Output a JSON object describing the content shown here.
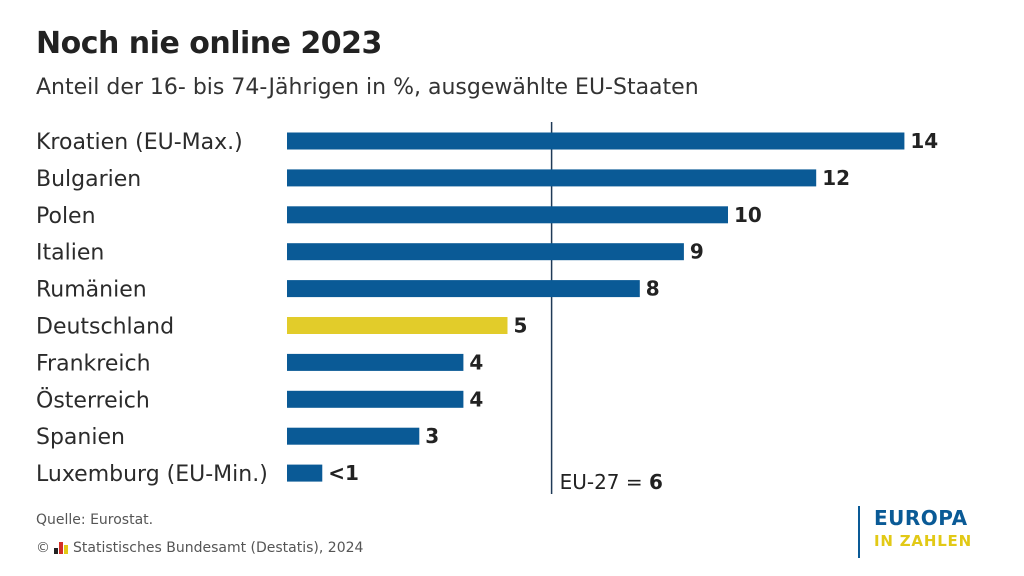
{
  "header": {
    "title": "Noch nie online 2023",
    "subtitle": "Anteil der 16- bis 74-Jährigen in %, ausgewählte EU-Staaten"
  },
  "chart_data": {
    "type": "bar",
    "orientation": "horizontal",
    "categories": [
      "Kroatien (EU-Max.)",
      "Bulgarien",
      "Polen",
      "Italien",
      "Rumänien",
      "Deutschland",
      "Frankreich",
      "Österreich",
      "Spanien",
      "Luxemburg (EU-Min.)"
    ],
    "values": [
      14,
      12,
      10,
      9,
      8,
      5,
      4,
      4,
      3,
      0.8
    ],
    "value_labels": [
      "14",
      "12",
      "10",
      "9",
      "8",
      "5",
      "4",
      "4",
      "3",
      "<1"
    ],
    "highlight_category": "Deutschland",
    "colors": {
      "bar": "#0a5a96",
      "highlight": "#e2cc2a",
      "reference_line": "#1f3a57"
    },
    "xlim": [
      0,
      14
    ],
    "reference": {
      "value": 6,
      "label": "EU-27 = ",
      "value_label": "6"
    },
    "grid": false,
    "legend": "none"
  },
  "footer": {
    "source": "Quelle: Eurostat.",
    "copyright_symbol": "©",
    "copyright_text": "Statistisches Bundesamt (Destatis), 2024",
    "logo_colors": [
      "#222222",
      "#d22f27",
      "#e2c916"
    ]
  },
  "branding": {
    "line1": "EUROPA",
    "line2": "IN ZAHLEN"
  }
}
